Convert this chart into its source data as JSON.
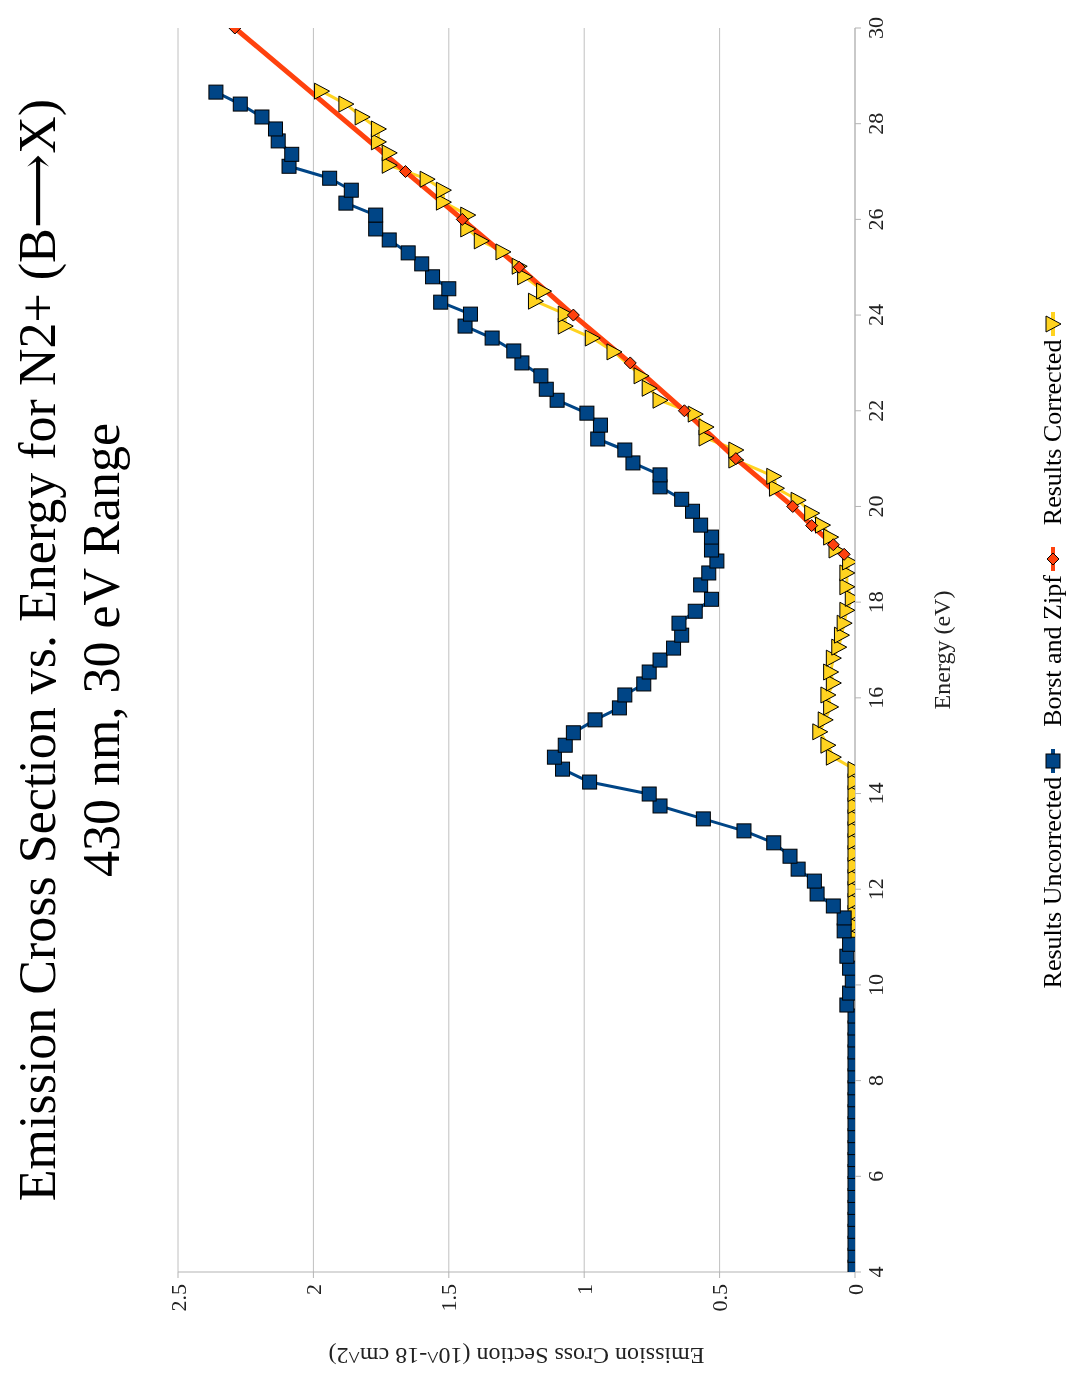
{
  "chart_data": {
    "type": "line",
    "title": "Emission Cross Section vs. Energy for N2+ (B⟶X)",
    "subtitle": "430 nm, 30 eV Range",
    "xlabel": "Emission Cross Section (10^-18 cm^2)",
    "ylabel": "Energy (eV)",
    "xlim": [
      2.5,
      0
    ],
    "xticks": [
      0,
      0.5,
      1,
      1.5,
      2,
      2.5
    ],
    "ylim": [
      4,
      30
    ],
    "yticks": [
      4,
      6,
      8,
      10,
      12,
      14,
      16,
      18,
      20,
      22,
      24,
      26,
      28,
      30
    ],
    "grid": "x",
    "legend": "right",
    "series": [
      {
        "name": "Results Uncorrected",
        "color": "#004586",
        "marker": "square",
        "values": [
          4.1,
          4.35,
          4.6,
          4.85,
          5.1,
          5.35,
          5.6,
          5.85,
          6.1,
          6.35,
          6.6,
          6.85,
          7.1,
          7.35,
          7.6,
          7.85,
          8.1,
          8.35,
          8.6,
          8.85,
          9.1,
          9.35,
          9.58,
          9.83,
          10.1,
          10.35,
          10.6,
          10.85,
          11.13,
          11.4,
          11.65,
          11.9,
          12.17,
          12.42,
          12.69,
          12.97,
          13.22,
          13.47,
          13.74,
          13.99,
          14.24,
          14.51,
          14.76,
          15.01,
          15.27,
          15.54,
          15.79,
          16.06,
          16.29,
          16.54,
          16.79,
          17.04,
          17.31,
          17.56,
          17.81,
          18.06,
          18.36,
          18.61,
          18.86,
          19.09,
          19.36,
          19.61,
          19.9,
          20.15,
          20.41,
          20.66,
          20.91,
          21.18,
          21.41,
          21.7,
          21.95,
          22.22,
          22.45,
          22.73,
          23,
          23.25,
          23.52,
          23.77,
          24.02,
          24.27,
          24.55,
          24.8,
          25.07,
          25.3,
          25.57,
          25.8,
          26.09,
          26.34,
          26.61,
          26.86,
          27.11,
          27.36,
          27.64,
          27.89,
          28.14,
          28.41,
          28.66
        ],
        "x": [
          0,
          0,
          0,
          0,
          0,
          0,
          0,
          0,
          0,
          0,
          0,
          0,
          0,
          0,
          0,
          0,
          0,
          0,
          0,
          0,
          0,
          0,
          0.03,
          0.02,
          0.01,
          0.02,
          0.03,
          0.02,
          0.04,
          0.04,
          0.08,
          0.14,
          0.15,
          0.21,
          0.24,
          0.3,
          0.41,
          0.56,
          0.72,
          0.76,
          0.98,
          1.08,
          1.11,
          1.07,
          1.04,
          0.96,
          0.87,
          0.85,
          0.78,
          0.76,
          0.72,
          0.67,
          0.64,
          0.65,
          0.59,
          0.53,
          0.57,
          0.54,
          0.51,
          0.53,
          0.53,
          0.57,
          0.6,
          0.64,
          0.72,
          0.72,
          0.82,
          0.85,
          0.95,
          0.94,
          0.99,
          1.1,
          1.14,
          1.16,
          1.23,
          1.26,
          1.34,
          1.44,
          1.42,
          1.53,
          1.5,
          1.56,
          1.6,
          1.65,
          1.72,
          1.77,
          1.77,
          1.88,
          1.86,
          1.94,
          2.09,
          2.08,
          2.13,
          2.14,
          2.19,
          2.27,
          2.36
        ]
      },
      {
        "name": "Borst and Zipf",
        "color": "#ff420e",
        "marker": "diamond",
        "values": [
          19,
          19.2,
          19.6,
          20,
          21,
          22,
          23,
          24,
          25,
          26,
          27,
          30
        ],
        "x": [
          0.04,
          0.08,
          0.16,
          0.23,
          0.44,
          0.63,
          0.83,
          1.04,
          1.24,
          1.45,
          1.66,
          2.29
        ]
      },
      {
        "name": "Results Corrected",
        "color": "#ffd320",
        "marker": "triangle",
        "values": [
          11,
          11.25,
          11.5,
          11.75,
          12,
          12.25,
          12.5,
          12.75,
          13,
          13.25,
          13.5,
          13.75,
          14,
          14.25,
          14.5,
          14.76,
          15.01,
          15.29,
          15.54,
          15.81,
          16.06,
          16.31,
          16.54,
          16.83,
          17.06,
          17.31,
          17.56,
          17.83,
          18.08,
          18.32,
          18.61,
          18.84,
          19.09,
          19.36,
          19.61,
          19.86,
          20.13,
          20.38,
          20.63,
          20.97,
          21.18,
          21.43,
          21.66,
          21.93,
          22.22,
          22.47,
          22.73,
          23.23,
          23.52,
          23.77,
          24.02,
          24.29,
          24.5,
          24.8,
          25.02,
          25.32,
          25.55,
          25.8,
          26.09,
          26.36,
          26.61,
          26.84,
          27.13,
          27.39,
          27.62,
          27.89,
          28.14,
          28.41,
          28.68
        ],
        "x": [
          0,
          0,
          0,
          0,
          0,
          0,
          0,
          0,
          0,
          0,
          0,
          0,
          0,
          0,
          0,
          0.08,
          0.1,
          0.13,
          0.11,
          0.09,
          0.1,
          0.08,
          0.09,
          0.08,
          0.06,
          0.05,
          0.04,
          0.03,
          0.01,
          0.03,
          0.03,
          0.02,
          0.07,
          0.09,
          0.12,
          0.16,
          0.21,
          0.29,
          0.3,
          0.44,
          0.44,
          0.55,
          0.55,
          0.59,
          0.72,
          0.76,
          0.79,
          0.89,
          0.97,
          1.07,
          1.07,
          1.18,
          1.15,
          1.22,
          1.24,
          1.3,
          1.38,
          1.43,
          1.43,
          1.52,
          1.52,
          1.58,
          1.72,
          1.72,
          1.76,
          1.76,
          1.82,
          1.88,
          1.97
        ]
      }
    ]
  }
}
